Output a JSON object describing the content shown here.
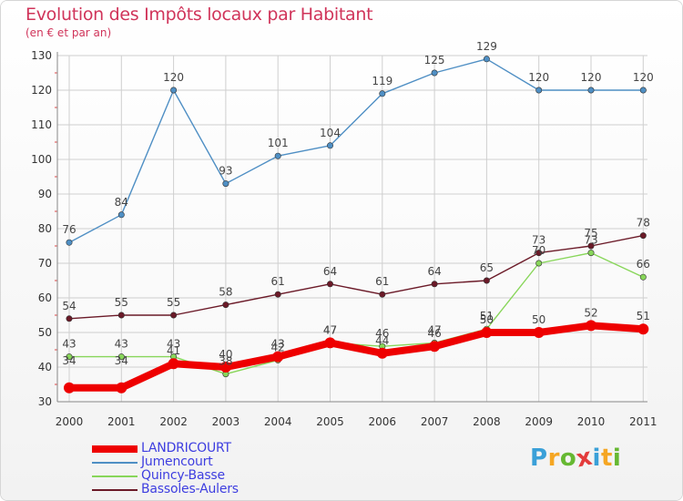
{
  "chart_data": {
    "type": "line",
    "title": "Evolution des Impôts locaux par Habitant",
    "subtitle": "(en € et par an)",
    "xlabel": "",
    "ylabel": "",
    "x": [
      "2000",
      "2001",
      "2002",
      "2003",
      "2004",
      "2005",
      "2006",
      "2007",
      "2008",
      "2009",
      "2010",
      "2011"
    ],
    "ylim": [
      30,
      130
    ],
    "yticks": [
      30,
      40,
      50,
      60,
      70,
      80,
      90,
      100,
      110,
      120,
      130
    ],
    "grid": true,
    "series": [
      {
        "name": "Jumencourt",
        "color": "#4f8fc4",
        "values": [
          76,
          84,
          120,
          93,
          101,
          104,
          119,
          125,
          129,
          120,
          120,
          120
        ]
      },
      {
        "name": "Bassoles-Aulers",
        "color": "#6b1a28",
        "values": [
          54,
          55,
          55,
          58,
          61,
          64,
          61,
          64,
          65,
          73,
          75,
          78
        ]
      },
      {
        "name": "Quincy-Basse",
        "color": "#88d65a",
        "values": [
          43,
          43,
          43,
          38,
          42,
          47,
          46,
          47,
          51,
          70,
          73,
          66
        ]
      },
      {
        "name": "LANDRICOURT",
        "color": "#ee0000",
        "values": [
          34,
          34,
          41,
          40,
          43,
          47,
          44,
          46,
          50,
          50,
          52,
          51
        ]
      }
    ],
    "legend": [
      {
        "label": "LANDRICOURT",
        "color": "#ee0000",
        "thick": true
      },
      {
        "label": "Jumencourt",
        "color": "#4f8fc4",
        "thick": false
      },
      {
        "label": "Quincy-Basse",
        "color": "#88d65a",
        "thick": false
      },
      {
        "label": "Bassoles-Aulers",
        "color": "#6b1a28",
        "thick": false
      }
    ]
  },
  "logo": {
    "letters": [
      "P",
      "r",
      "o",
      "x",
      "i",
      "t",
      "i"
    ],
    "colors": [
      "#3aa0d8",
      "#f5a623",
      "#66b832",
      "#e33b3b",
      "#3aa0d8",
      "#f5a623",
      "#66b832"
    ]
  }
}
